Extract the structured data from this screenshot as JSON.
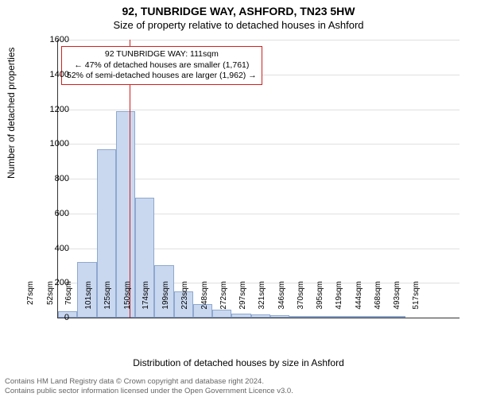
{
  "title": "92, TUNBRIDGE WAY, ASHFORD, TN23 5HW",
  "subtitle": "Size of property relative to detached houses in Ashford",
  "chart": {
    "type": "histogram",
    "ylabel": "Number of detached properties",
    "xlabel": "Distribution of detached houses by size in Ashford",
    "ylim": [
      0,
      1600
    ],
    "yticks": [
      0,
      200,
      400,
      600,
      800,
      1000,
      1200,
      1400,
      1600
    ],
    "x_start_sqm": 20,
    "x_end_sqm": 530,
    "x_bin_width_sqm": 24.5,
    "xtick_sqm": [
      27,
      52,
      76,
      101,
      125,
      150,
      174,
      199,
      223,
      248,
      272,
      297,
      321,
      346,
      370,
      395,
      419,
      444,
      468,
      493,
      517
    ],
    "xtick_suffix": "sqm",
    "bars_counts": [
      35,
      320,
      970,
      1190,
      690,
      300,
      150,
      80,
      45,
      25,
      20,
      15,
      10,
      8,
      6,
      5,
      4,
      3,
      2,
      2,
      0
    ],
    "bar_fill": "#c9d8ef",
    "bar_border": "#8ea8d0",
    "grid_color": "#e0e0e0",
    "ref_line_sqm": 111,
    "ref_line_color": "#d02020",
    "background": "#ffffff"
  },
  "infobox": {
    "line1": "92 TUNBRIDGE WAY: 111sqm",
    "line2": "← 47% of detached houses are smaller (1,761)",
    "line3": "52% of semi-detached houses are larger (1,962) →",
    "border_color": "#d02020"
  },
  "footer": {
    "line1": "Contains HM Land Registry data © Crown copyright and database right 2024.",
    "line2": "Contains public sector information licensed under the Open Government Licence v3.0."
  }
}
